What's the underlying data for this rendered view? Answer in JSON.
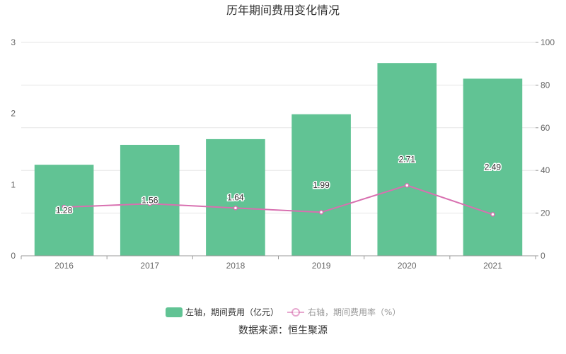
{
  "chart_data": {
    "type": "bar",
    "title": "历年期间费用变化情况",
    "categories": [
      "2016",
      "2017",
      "2018",
      "2019",
      "2020",
      "2021"
    ],
    "series": [
      {
        "name": "左轴，期间费用（亿元）",
        "type": "bar",
        "axis": "left",
        "values": [
          1.28,
          1.56,
          1.64,
          1.99,
          2.71,
          2.49
        ],
        "color": "#61c394"
      },
      {
        "name": "右轴，期间费用率（%）",
        "type": "line",
        "axis": "right",
        "values": [
          22.8,
          24.4,
          22.4,
          20.4,
          33.0,
          19.4
        ],
        "color": "#d870b0"
      }
    ],
    "y_left": {
      "ylim": [
        0,
        3
      ],
      "ticks": [
        "0",
        "1",
        "2",
        "3"
      ]
    },
    "y_right": {
      "ylim": [
        0,
        100
      ],
      "ticks": [
        "0",
        "20",
        "40",
        "60",
        "80",
        "100"
      ]
    },
    "grid": true,
    "legend_position": "bottom"
  },
  "source": "数据来源：恒生聚源",
  "colors": {
    "text": "#333333",
    "axis": "#666666",
    "grid": "#e6e6e6"
  }
}
